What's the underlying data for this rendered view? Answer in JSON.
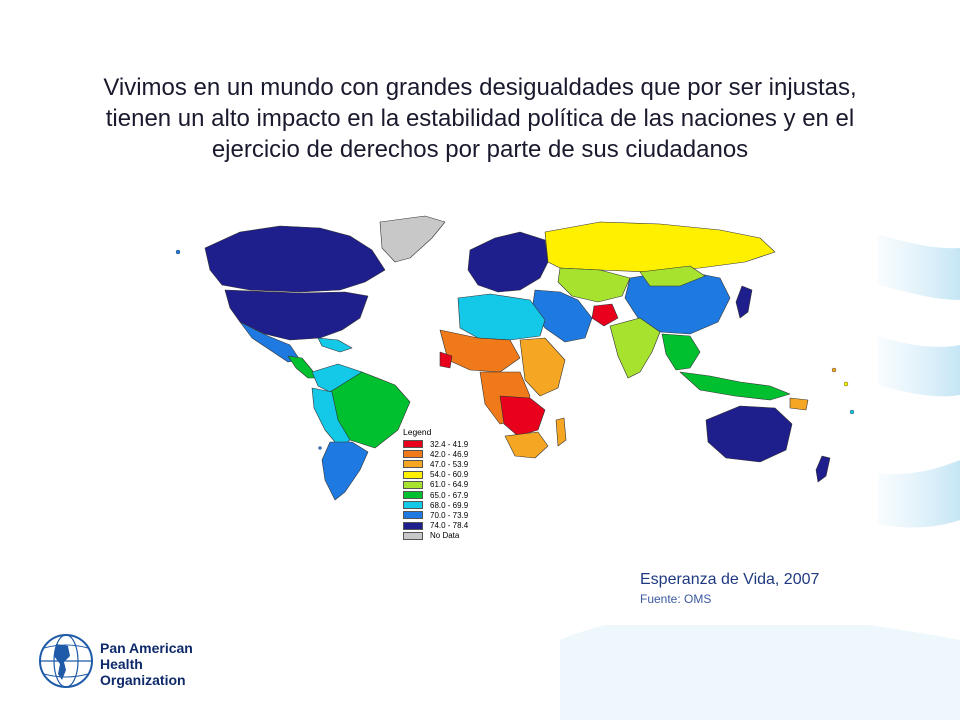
{
  "headline": {
    "line1": "Vivimos en un mundo con grandes desigualdades que por ser injustas,",
    "line2": "tienen un alto impacto en la estabilidad política  de las naciones y en el",
    "line3": "ejercicio de derechos por parte de sus ciudadanos"
  },
  "legend": {
    "title": "Legend",
    "items": [
      {
        "label": "32.4 - 41.9",
        "color": "#e8001c"
      },
      {
        "label": "42.0 - 46.9",
        "color": "#f07a1a"
      },
      {
        "label": "47.0 - 53.9",
        "color": "#f5a623"
      },
      {
        "label": "54.0 - 60.9",
        "color": "#fff000"
      },
      {
        "label": "61.0 - 64.9",
        "color": "#a6e22e"
      },
      {
        "label": "65.0 - 67.9",
        "color": "#00c030"
      },
      {
        "label": "68.0 - 69.9",
        "color": "#14c8e8"
      },
      {
        "label": "70.0 - 73.9",
        "color": "#1e7ae0"
      },
      {
        "label": "74.0 - 78.4",
        "color": "#1e1e8c"
      },
      {
        "label": "No Data",
        "color": "#c8c8c8"
      }
    ]
  },
  "caption": {
    "title": "Esperanza de Vida, 2007",
    "source": "Fuente: OMS"
  },
  "organization": {
    "line1": "Pan American",
    "line2": "Health",
    "line3": "Organization"
  },
  "icons": {
    "logo": "paho-globe-logo",
    "map": "world-map-life-expectancy"
  }
}
